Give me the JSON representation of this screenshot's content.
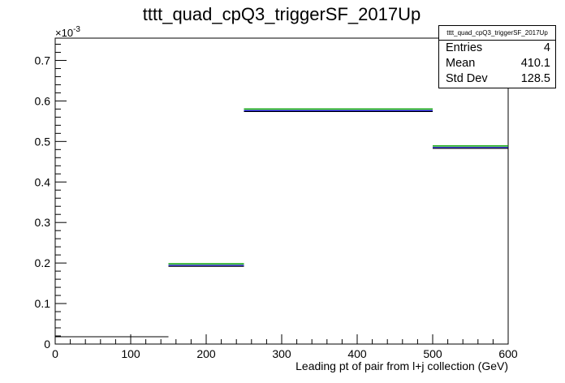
{
  "chart_data": {
    "type": "histogram",
    "title": "tttt_quad_cpQ3_triggerSF_2017Up",
    "xlabel": "Leading pt of pair from l+j collection (GeV)",
    "ylabel": "",
    "y_multiplier_label": "×10",
    "y_multiplier_exponent": "-3",
    "xlim": [
      0,
      600
    ],
    "ylim": [
      0,
      0.755
    ],
    "x_ticks": [
      "0",
      "100",
      "200",
      "300",
      "400",
      "500",
      "600"
    ],
    "y_ticks": [
      "0",
      "0.1",
      "0.2",
      "0.3",
      "0.4",
      "0.5",
      "0.6",
      "0.7"
    ],
    "bins": [
      {
        "x0": 0,
        "x1": 150,
        "value": 0.018
      },
      {
        "x0": 150,
        "x1": 250,
        "value": 0.195
      },
      {
        "x0": 250,
        "x1": 500,
        "value": 0.577
      },
      {
        "x0": 500,
        "x1": 600,
        "value": 0.486
      }
    ],
    "colors": {
      "line": "#000000",
      "overlay_green": "#00a000",
      "overlay_blue": "#0000c8",
      "frame": "#000000"
    }
  },
  "stats": {
    "title": "tttt_quad_cpQ3_triggerSF_2017Up",
    "rows": [
      {
        "label": "Entries",
        "value": "4"
      },
      {
        "label": "Mean",
        "value": "410.1"
      },
      {
        "label": "Std Dev",
        "value": "128.5"
      }
    ]
  }
}
